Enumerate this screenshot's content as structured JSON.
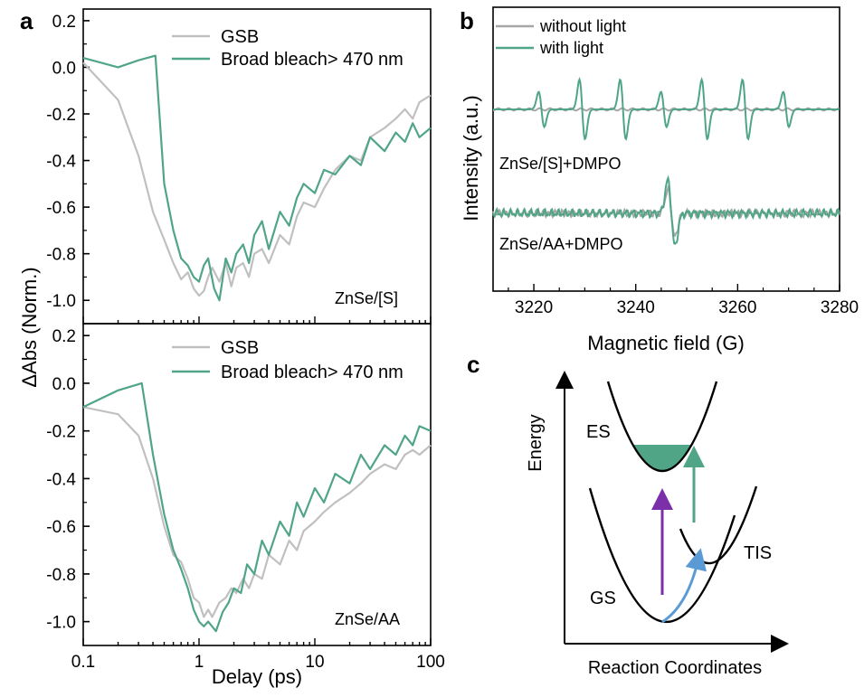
{
  "colors": {
    "gsb": "#c0c0c0",
    "bleach": "#4fa586",
    "without_light": "#a6a6a6",
    "with_light": "#4fa586",
    "purple": "#7b2fa8",
    "blue": "#5b9bd5",
    "green_arrow": "#4fa586",
    "fill": "#4fa586"
  },
  "panels": {
    "a": "a",
    "b": "b",
    "c": "c"
  },
  "chart_data": [
    {
      "panel": "a-top",
      "type": "line",
      "xscale": "log",
      "xlim": [
        0.1,
        100
      ],
      "ylim": [
        -1.1,
        0.25
      ],
      "yticks": [
        "0.2",
        "0.0",
        "-0.2",
        "-0.4",
        "-0.6",
        "-0.8",
        "-1.0"
      ],
      "ytick_values": [
        0.2,
        0.0,
        -0.2,
        -0.4,
        -0.6,
        -0.8,
        -1.0
      ],
      "ylabel": "ΔAbs (Norm.)",
      "annotation": "ZnSe/[S]",
      "series": [
        {
          "name": "GSB",
          "color": "gsb",
          "x": [
            0.1,
            0.2,
            0.3,
            0.4,
            0.5,
            0.6,
            0.7,
            0.8,
            0.9,
            1.0,
            1.1,
            1.2,
            1.3,
            1.5,
            1.7,
            1.9,
            2.1,
            2.4,
            2.7,
            3.0,
            3.5,
            4.0,
            5.0,
            6.0,
            7.0,
            8.0,
            10,
            12,
            15,
            20,
            25,
            30,
            40,
            50,
            60,
            70,
            80,
            100
          ],
          "y": [
            0.02,
            -0.14,
            -0.38,
            -0.62,
            -0.74,
            -0.84,
            -0.91,
            -0.88,
            -0.95,
            -0.98,
            -0.96,
            -0.9,
            -0.86,
            -0.92,
            -0.84,
            -0.94,
            -0.86,
            -0.84,
            -0.9,
            -0.8,
            -0.78,
            -0.84,
            -0.72,
            -0.76,
            -0.64,
            -0.58,
            -0.6,
            -0.52,
            -0.44,
            -0.38,
            -0.4,
            -0.3,
            -0.26,
            -0.22,
            -0.18,
            -0.22,
            -0.15,
            -0.12
          ]
        },
        {
          "name": "Broad bleach> 470 nm",
          "color": "bleach",
          "x": [
            0.1,
            0.2,
            0.3,
            0.42,
            0.5,
            0.6,
            0.7,
            0.8,
            0.9,
            1.0,
            1.1,
            1.2,
            1.35,
            1.5,
            1.7,
            1.9,
            2.1,
            2.4,
            2.7,
            3.0,
            3.5,
            4.0,
            5.0,
            6.0,
            7.0,
            8.0,
            10,
            12,
            15,
            20,
            25,
            30,
            40,
            50,
            60,
            70,
            80,
            100
          ],
          "y": [
            0.04,
            0.0,
            0.03,
            0.05,
            -0.5,
            -0.7,
            -0.82,
            -0.85,
            -0.9,
            -0.92,
            -0.85,
            -0.82,
            -0.95,
            -1.0,
            -0.82,
            -0.88,
            -0.8,
            -0.76,
            -0.84,
            -0.72,
            -0.66,
            -0.78,
            -0.62,
            -0.68,
            -0.56,
            -0.5,
            -0.54,
            -0.44,
            -0.46,
            -0.38,
            -0.42,
            -0.3,
            -0.36,
            -0.28,
            -0.32,
            -0.24,
            -0.3,
            -0.26
          ]
        }
      ]
    },
    {
      "panel": "a-bottom",
      "type": "line",
      "xscale": "log",
      "xlim": [
        0.1,
        100
      ],
      "xticks": [
        "0.1",
        "1",
        "10",
        "100"
      ],
      "xtick_values": [
        0.1,
        1,
        10,
        100
      ],
      "xlabel": "Delay (ps)",
      "ylim": [
        -1.1,
        0.25
      ],
      "yticks": [
        "0.2",
        "0.0",
        "-0.2",
        "-0.4",
        "-0.6",
        "-0.8",
        "-1.0"
      ],
      "ytick_values": [
        0.2,
        0.0,
        -0.2,
        -0.4,
        -0.6,
        -0.8,
        -1.0
      ],
      "annotation": "ZnSe/AA",
      "series": [
        {
          "name": "GSB",
          "color": "gsb",
          "x": [
            0.1,
            0.2,
            0.3,
            0.4,
            0.5,
            0.6,
            0.7,
            0.8,
            0.9,
            1.0,
            1.1,
            1.2,
            1.3,
            1.5,
            1.7,
            1.9,
            2.1,
            2.4,
            2.7,
            3.0,
            3.5,
            4.0,
            5.0,
            6.0,
            7.0,
            8.0,
            10,
            12,
            15,
            20,
            25,
            30,
            40,
            50,
            60,
            70,
            80,
            100
          ],
          "y": [
            -0.1,
            -0.13,
            -0.22,
            -0.4,
            -0.6,
            -0.72,
            -0.75,
            -0.82,
            -0.9,
            -0.92,
            -0.98,
            -0.95,
            -0.98,
            -0.92,
            -0.9,
            -0.86,
            -0.88,
            -0.82,
            -0.86,
            -0.8,
            -0.82,
            -0.72,
            -0.76,
            -0.66,
            -0.7,
            -0.62,
            -0.58,
            -0.54,
            -0.5,
            -0.46,
            -0.42,
            -0.38,
            -0.34,
            -0.36,
            -0.3,
            -0.28,
            -0.3,
            -0.26
          ]
        },
        {
          "name": "Broad bleach> 470 nm",
          "color": "bleach",
          "x": [
            0.1,
            0.2,
            0.32,
            0.4,
            0.5,
            0.6,
            0.7,
            0.8,
            0.9,
            1.0,
            1.1,
            1.2,
            1.4,
            1.6,
            1.8,
            2.0,
            2.3,
            2.6,
            3.0,
            3.5,
            4.0,
            5.0,
            6.0,
            7.0,
            8.0,
            10,
            12,
            15,
            20,
            25,
            30,
            40,
            50,
            60,
            70,
            80,
            100
          ],
          "y": [
            -0.1,
            -0.03,
            0.0,
            -0.3,
            -0.55,
            -0.7,
            -0.78,
            -0.86,
            -0.95,
            -1.0,
            -1.02,
            -1.0,
            -1.04,
            -0.96,
            -0.92,
            -0.86,
            -0.88,
            -0.76,
            -0.8,
            -0.66,
            -0.72,
            -0.58,
            -0.64,
            -0.5,
            -0.56,
            -0.44,
            -0.5,
            -0.38,
            -0.42,
            -0.3,
            -0.36,
            -0.26,
            -0.3,
            -0.22,
            -0.26,
            -0.18,
            -0.2
          ]
        }
      ]
    },
    {
      "panel": "b",
      "type": "line",
      "xlim": [
        3212,
        3280
      ],
      "xticks": [
        "3220",
        "3240",
        "3260",
        "3280"
      ],
      "xtick_values": [
        3220,
        3240,
        3260,
        3280
      ],
      "xlabel": "Magnetic field (G)",
      "ylabel": "Intensity (a.u.)",
      "annotations": [
        "ZnSe/[S]+DMPO",
        "ZnSe/AA+DMPO"
      ],
      "series": [
        {
          "name": "without light",
          "color": "without_light"
        },
        {
          "name": "with light",
          "color": "with_light"
        }
      ]
    },
    {
      "panel": "c",
      "type": "diagram",
      "xlabel": "Reaction Coordinates",
      "ylabel": "Energy",
      "labels": [
        "ES",
        "GS",
        "TIS"
      ]
    }
  ]
}
